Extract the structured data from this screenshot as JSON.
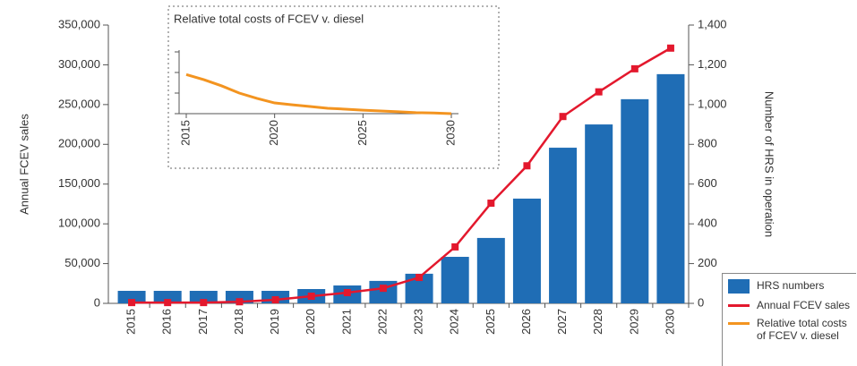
{
  "chart_data": [
    {
      "type": "bar",
      "categories": [
        "2015",
        "2016",
        "2017",
        "2018",
        "2019",
        "2020",
        "2021",
        "2022",
        "2023",
        "2024",
        "2025",
        "2026",
        "2027",
        "2028",
        "2029",
        "2030"
      ],
      "ylabel": "Annual FCEV sales",
      "y2label": "Number of HRS in operation",
      "ylim": [
        0,
        350000
      ],
      "yticks": [
        0,
        {
          "value": 50000,
          "label": "50,000"
        },
        {
          "value": 100000,
          "label": "100,000"
        },
        {
          "value": 150000,
          "label": "150,000"
        },
        {
          "value": 200000,
          "label": "200,000"
        },
        {
          "value": 250000,
          "label": "250,000"
        },
        {
          "value": 300000,
          "label": "300,000"
        },
        {
          "value": 350000,
          "label": "350,000"
        }
      ],
      "y2lim": [
        0,
        1400
      ],
      "y2ticks": [
        0,
        200,
        400,
        600,
        800,
        {
          "value": 1000,
          "label": "1,000"
        },
        {
          "value": 1200,
          "label": "1,200"
        },
        {
          "value": 1400,
          "label": "1,400"
        }
      ],
      "series": [
        {
          "name": "HRS numbers",
          "type": "bar",
          "axis": "y2",
          "color": "#1f6db5",
          "values": [
            63,
            63,
            63,
            63,
            63,
            72,
            90,
            113,
            149,
            234,
            329,
            527,
            783,
            900,
            1027,
            1153
          ]
        },
        {
          "name": "Annual FCEV sales",
          "type": "line",
          "color": "#e3182d",
          "values": [
            1000,
            1000,
            1000,
            2000,
            4500,
            9000,
            13500,
            19000,
            32600,
            71000,
            126000,
            173000,
            235000,
            266000,
            295000,
            321000
          ]
        }
      ]
    },
    {
      "type": "line",
      "title": "Relative total costs of FCEV v. diesel",
      "x": [
        2015,
        2016,
        2017,
        2018,
        2019,
        2020,
        2021,
        2022,
        2023,
        2024,
        2025,
        2026,
        2027,
        2028,
        2029,
        2030
      ],
      "xlim": [
        2015,
        2030
      ],
      "xticks": [
        2015,
        2020,
        2025,
        2030
      ],
      "ylim": [
        0,
        3
      ],
      "yticks": [
        0,
        1,
        2,
        3
      ],
      "series": [
        {
          "name": "Relative total costs of FCEV v. diesel",
          "color": "#f39420",
          "values": [
            1.9,
            1.65,
            1.35,
            1.0,
            0.74,
            0.52,
            0.43,
            0.35,
            0.26,
            0.22,
            0.17,
            0.13,
            0.09,
            0.05,
            0.03,
            0
          ]
        }
      ]
    }
  ]
}
